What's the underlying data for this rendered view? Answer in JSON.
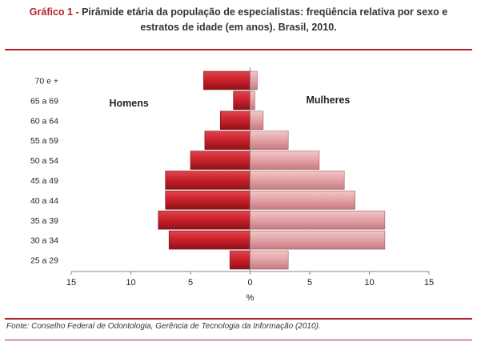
{
  "title": {
    "label": "Gráfico 1",
    "separator": " - ",
    "line1": "Pirâmide etária da população de especialistas: freqüência relativa por sexo e",
    "line2": "estratos de idade (em anos). Brasil, 2010."
  },
  "source": {
    "text": "Fonte:  Conselho Federal de Odontologia, Gerência de Tecnologia da Informação (2010)."
  },
  "colors": {
    "accent": "#b3202a",
    "men_bar": "#c8202a",
    "women_bar": "#e3a2a6",
    "axis": "#888888"
  },
  "chart_data": {
    "type": "bar",
    "orientation": "horizontal-pyramid",
    "categories": [
      "70 e +",
      "65 a 69",
      "60 a 64",
      "55 a 59",
      "50 a 54",
      "45 a 49",
      "40 a 44",
      "35 a 39",
      "30 a 34",
      "25 a 29"
    ],
    "series": [
      {
        "name": "Homens",
        "values": [
          3.9,
          1.4,
          2.5,
          3.8,
          5.0,
          7.1,
          7.1,
          7.7,
          6.8,
          1.7
        ]
      },
      {
        "name": "Mulheres",
        "values": [
          0.6,
          0.4,
          1.1,
          3.2,
          5.8,
          7.9,
          8.8,
          11.3,
          11.3,
          3.2
        ]
      }
    ],
    "xlim": [
      -15,
      15
    ],
    "xticks": [
      -15,
      -10,
      -5,
      0,
      5,
      10,
      15
    ],
    "xtick_labels": [
      "15",
      "10",
      "5",
      "0",
      "5",
      "10",
      "15"
    ],
    "xlabel": "%",
    "grid": false,
    "legend": "inline labels"
  }
}
